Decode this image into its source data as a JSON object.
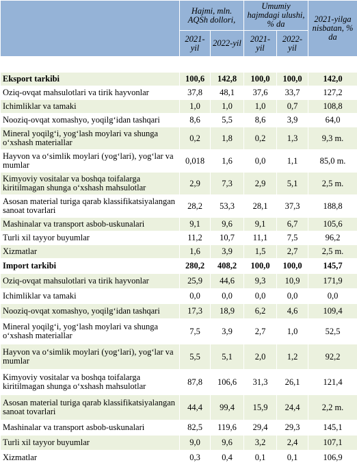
{
  "header": {
    "volume": "Hajmi, mln. AQSh dollori,",
    "share": "Umumiy hajmdagi ulushi, % da",
    "ratio": "2021-yilga nisbatan, % da",
    "years": [
      "2021-yil",
      "2022-yil",
      "2021-yil",
      "2022-yil"
    ]
  },
  "sections": [
    {
      "title": [
        "Eksport tarkibi",
        "100,6",
        "142,8",
        "100,0",
        "100,0",
        "142,0"
      ],
      "rows": [
        [
          "Oziq-ovqat mahsulotlari va tirik hayvonlar",
          "37,8",
          "48,1",
          "37,6",
          "33,7",
          "127,2"
        ],
        [
          "Ichimliklar va tamaki",
          "1,0",
          "1,0",
          "1,0",
          "0,7",
          "108,8"
        ],
        [
          "Nooziq-ovqat xomashyo, yoqilg‘idan tashqari",
          "8,6",
          "5,5",
          "8,6",
          "3,9",
          "64,0"
        ],
        [
          "Mineral yoqilg‘i, yog‘lash moylari va shunga o‘xshash materiallar",
          "0,2",
          "1,8",
          "0,2",
          "1,3",
          "9,3 m."
        ],
        [
          "Hayvon va o‘simlik moylari (yog‘lari), yog‘lar va mumlar",
          "0,018",
          "1,6",
          "0,0",
          "1,1",
          "85,0 m."
        ],
        [
          "Kimyoviy vositalar va boshqa toifalarga kiritilmagan shunga o‘xshash mahsulotlar",
          "2,9",
          "7,3",
          "2,9",
          "5,1",
          "2,5 m."
        ],
        [
          "Asosan material turiga qarab klassifikatsiyalangan sanoat tovarlari",
          "28,2",
          "53,3",
          "28,1",
          "37,3",
          "188,8"
        ],
        [
          "Mashinalar va transport asbob-uskunalari",
          "9,1",
          "9,6",
          "9,1",
          "6,7",
          "105,6"
        ],
        [
          "Turli xil tayyor buyumlar",
          "11,2",
          "10,7",
          "11,1",
          "7,5",
          "96,2"
        ],
        [
          "Xizmatlar",
          "1,6",
          "3,9",
          "1,5",
          "2,7",
          "2,5 m."
        ]
      ]
    },
    {
      "title": [
        "Import tarkibi",
        "280,2",
        "408,2",
        "100,0",
        "100,0",
        "145,7"
      ],
      "rows": [
        [
          "Oziq-ovqat mahsulotlari va tirik hayvonlar",
          "25,9",
          "44,6",
          "9,3",
          "10,9",
          "171,9"
        ],
        [
          "Ichimliklar va tamaki",
          "0,0",
          "0,0",
          "0,0",
          "0,0",
          "0,0"
        ],
        [
          "Nooziq-ovqat xomashyo, yoqilg‘idan tashqari",
          "17,3",
          "18,9",
          "6,2",
          "4,6",
          "109,4"
        ],
        [
          "Mineral yoqilg‘i, yog‘lash moylari va shunga o‘xshash materiallar",
          "7,5",
          "3,9",
          "2,7",
          "1,0",
          "52,5"
        ],
        [
          "Hayvon va o‘simlik moylari (yog‘lari), yog‘lar va mumlar",
          "5,5",
          "5,1",
          "2,0",
          "1,2",
          "92,2"
        ],
        [
          "Kimyoviy vositalar va boshqa toifalarga kiritilmagan shunga o‘xshash mahsulotlar",
          "87,8",
          "106,6",
          "31,3",
          "26,1",
          "121,4"
        ],
        [
          "Asosan material turiga qarab klassifikatsiyalangan sanoat tovarlari",
          "44,4",
          "99,4",
          "15,9",
          "24,4",
          "2,2 m."
        ],
        [
          "Mashinalar va transport asbob-uskunalari",
          "82,5",
          "119,6",
          "29,4",
          "29,3",
          "145,1"
        ],
        [
          "Turli xil tayyor buyumlar",
          "9,0",
          "9,6",
          "3,2",
          "2,4",
          "107,1"
        ],
        [
          "Xizmatlar",
          "0,3",
          "0,4",
          "0,1",
          "0,1",
          "106,9"
        ]
      ]
    }
  ]
}
